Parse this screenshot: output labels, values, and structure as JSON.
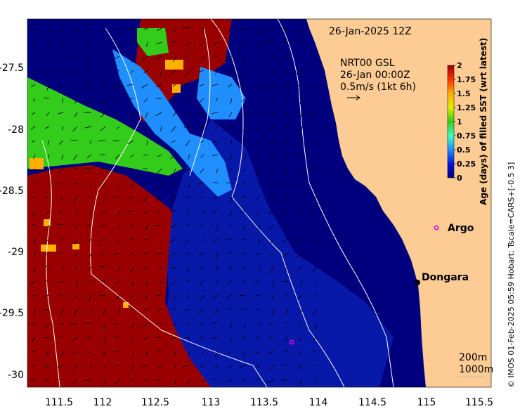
{
  "date_label": "26-Jan-2025 12Z",
  "product": {
    "line1": "NRT00 GSL",
    "line2": "26-Jan 00:00Z",
    "line3": "0.5m/s (1kt 6h)"
  },
  "places": {
    "argo": "Argo",
    "dongara": "Dongara"
  },
  "isobaths": {
    "a": "200m",
    "b": "1000m"
  },
  "credit": "© IMOS 01-Feb-2025 05:59 Hobart; Tscale=CARS+[-0.5 3]",
  "colorbar": {
    "title": "Age (days) of filled SST (wrt latest)",
    "ticks": [
      "2",
      "1.75",
      "1.5",
      "1.25",
      "1",
      "0.75",
      "0.5",
      "0.25",
      "0"
    ]
  },
  "axes": {
    "x_ticks": [
      "111.5",
      "112",
      "112.5",
      "113",
      "113.5",
      "114",
      "114.5",
      "115",
      "115.5"
    ],
    "y_ticks": [
      "-27.5",
      "-28",
      "-28.5",
      "-29",
      "-29.5",
      "-30"
    ]
  },
  "colors": {
    "land": "#fdcb94",
    "age_0": "#00007f",
    "age_0_25": "#0020c8",
    "age_0_5": "#1f8fff",
    "age_0_75": "#40ffbf",
    "age_1": "#33cc1a",
    "age_1_5": "#ffb000",
    "age_2": "#9a0000",
    "argo_marker": "#e000e0"
  }
}
